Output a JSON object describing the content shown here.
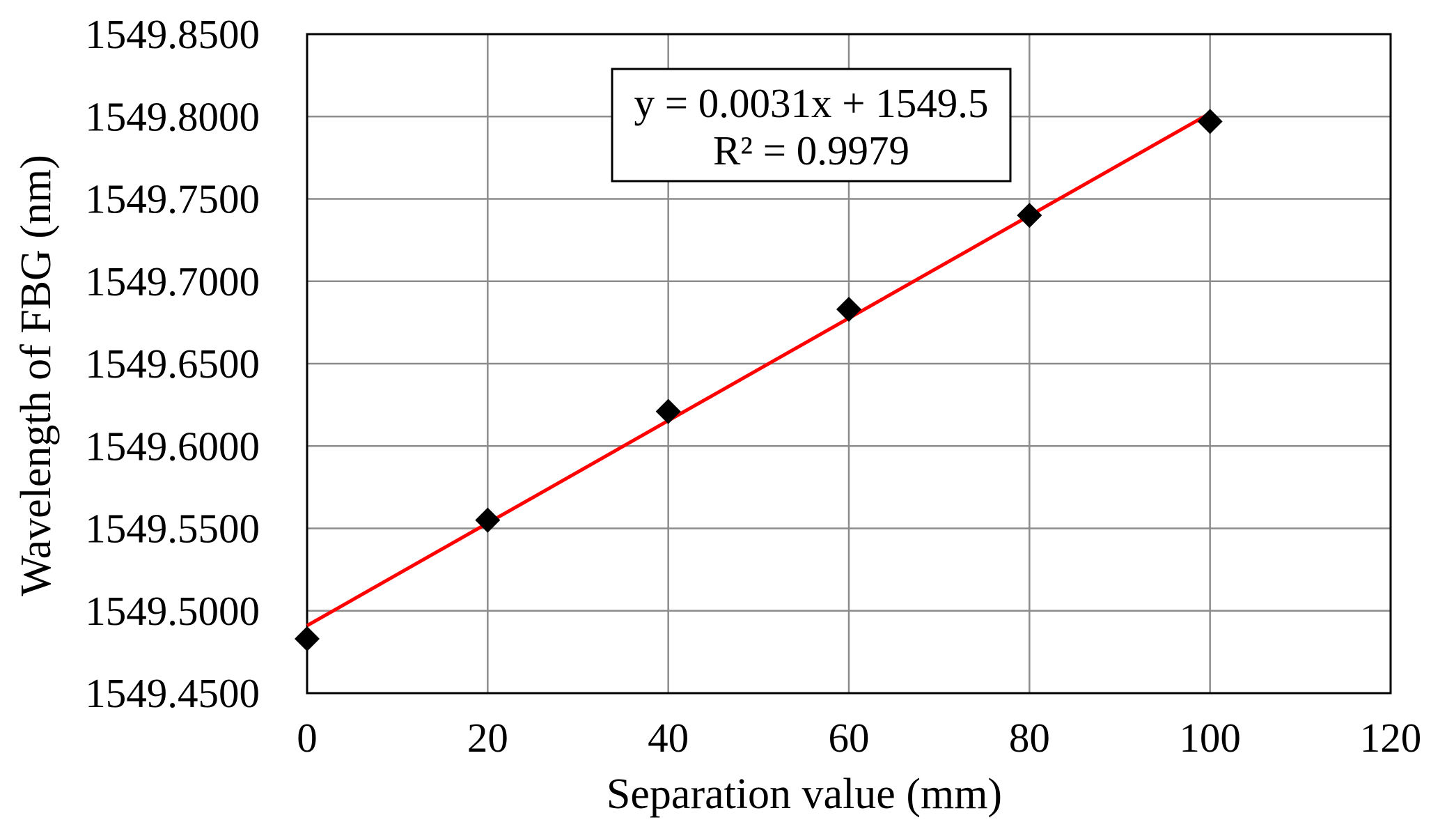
{
  "chart_data": {
    "type": "scatter",
    "xlabel": "Separation value (mm)",
    "ylabel": "Wavelength of FBG (nm)",
    "xlim": [
      0,
      120
    ],
    "ylim": [
      1549.45,
      1549.85
    ],
    "x_ticks": [
      "0",
      "20",
      "40",
      "60",
      "80",
      "100",
      "120"
    ],
    "y_ticks": [
      "1549.4500",
      "1549.5000",
      "1549.5500",
      "1549.6000",
      "1549.6500",
      "1549.7000",
      "1549.7500",
      "1549.8000",
      "1549.8500"
    ],
    "grid": true,
    "series": [
      {
        "marker": "diamond",
        "color": "#000000",
        "x": [
          0,
          20,
          40,
          60,
          80,
          100
        ],
        "y": [
          1549.483,
          1549.555,
          1549.621,
          1549.683,
          1549.74,
          1549.797
        ]
      }
    ],
    "trendline": {
      "type": "linear",
      "color": "#ff0000",
      "x": [
        0,
        100
      ],
      "y": [
        1549.491,
        1549.802
      ],
      "equation": "y = 0.0031x + 1549.5",
      "r_squared": "R² = 0.9979"
    }
  }
}
